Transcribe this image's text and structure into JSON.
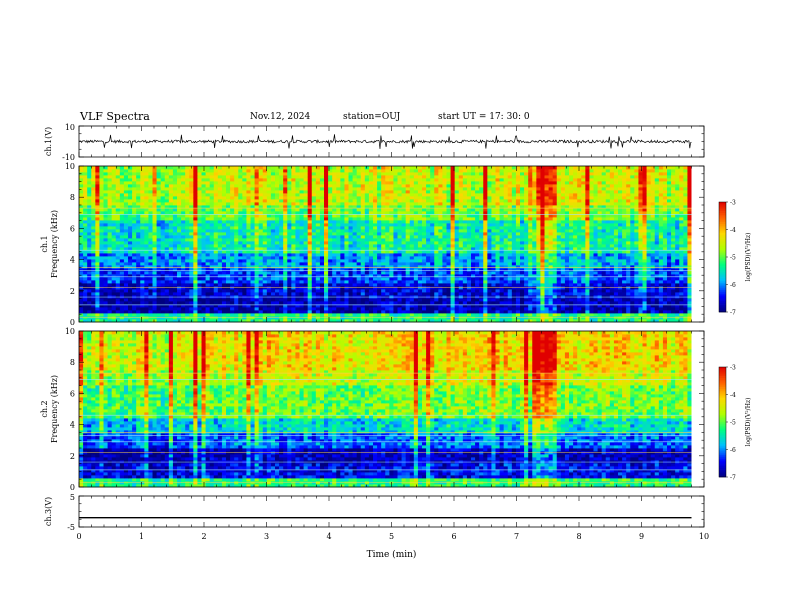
{
  "header": {
    "title": "VLF Spectra",
    "date": "Nov.12, 2024",
    "station": "station=OUJ",
    "start_ut": "start  UT =   17: 30: 0"
  },
  "chart_data": [
    {
      "type": "line",
      "name": "ch1-waveform",
      "ylabel": "ch.1(V)",
      "ytick_labels": [
        "10",
        "-10"
      ],
      "ylim": [
        -10,
        10
      ],
      "xlim": [
        0,
        10
      ],
      "baseline_v": 0,
      "noise_amplitude_v": 1.5,
      "data_span_min": [
        0,
        9.8
      ]
    },
    {
      "type": "heatmap",
      "name": "ch1-spectrogram",
      "ylabel_line1": "ch.1",
      "ylabel_line2": "Frequency (kHz)",
      "ytick_labels": [
        "0",
        "2",
        "4",
        "6",
        "8",
        "10"
      ],
      "ylim": [
        0,
        10
      ],
      "xlim": [
        0,
        10
      ],
      "data_span_min": [
        0,
        9.8
      ],
      "colorbar": {
        "label": "log(PSD)(V²/Hz)",
        "tick_labels": [
          "-3",
          "-4",
          "-5",
          "-6",
          "-7"
        ],
        "range": [
          -7,
          -3
        ]
      },
      "band_levels": [
        {
          "f_khz": [
            0,
            0.5
          ],
          "level": -5.3
        },
        {
          "f_khz": [
            0.5,
            1.5
          ],
          "level": -6.8
        },
        {
          "f_khz": [
            1.5,
            2.5
          ],
          "level": -6.6
        },
        {
          "f_khz": [
            2.5,
            3.5
          ],
          "level": -6.2
        },
        {
          "f_khz": [
            3.5,
            4.5
          ],
          "level": -5.9
        },
        {
          "f_khz": [
            4.5,
            6.5
          ],
          "level": -5.4
        },
        {
          "f_khz": [
            6.5,
            7.5
          ],
          "level": -4.9
        },
        {
          "f_khz": [
            7.5,
            10
          ],
          "level": -4.5
        }
      ]
    },
    {
      "type": "heatmap",
      "name": "ch2-spectrogram",
      "ylabel_line1": "ch.2",
      "ylabel_line2": "Frequency (kHz)",
      "ytick_labels": [
        "0",
        "2",
        "4",
        "6",
        "8",
        "10"
      ],
      "ylim": [
        0,
        10
      ],
      "xlim": [
        0,
        10
      ],
      "data_span_min": [
        0,
        9.8
      ],
      "colorbar": {
        "label": "log(PSD)(V²/Hz)",
        "tick_labels": [
          "-3",
          "-4",
          "-5",
          "-6",
          "-7"
        ],
        "range": [
          -7,
          -3
        ]
      },
      "band_levels": [
        {
          "f_khz": [
            0,
            0.5
          ],
          "level": -5.2
        },
        {
          "f_khz": [
            0.5,
            1.5
          ],
          "level": -6.5
        },
        {
          "f_khz": [
            1.5,
            2.5
          ],
          "level": -6.7
        },
        {
          "f_khz": [
            2.5,
            3.5
          ],
          "level": -6.1
        },
        {
          "f_khz": [
            3.5,
            4.5
          ],
          "level": -5.6
        },
        {
          "f_khz": [
            4.5,
            6.5
          ],
          "level": -4.9
        },
        {
          "f_khz": [
            6.5,
            7.5
          ],
          "level": -4.5
        },
        {
          "f_khz": [
            7.5,
            10
          ],
          "level": -4.2
        }
      ]
    },
    {
      "type": "line",
      "name": "ch3-waveform",
      "ylabel": "ch.3(V)",
      "ytick_labels": [
        "5",
        "-5"
      ],
      "ylim": [
        -5,
        5
      ],
      "xlim": [
        0,
        10
      ],
      "constant_value_v": -2,
      "data_span_min": [
        0,
        9.8
      ],
      "xlabel": "Time (min)",
      "xtick_labels": [
        "0",
        "1",
        "2",
        "3",
        "4",
        "5",
        "6",
        "7",
        "8",
        "9",
        "10"
      ]
    }
  ],
  "colors": {
    "colormap": [
      "#00007f",
      "#0000ff",
      "#00bfff",
      "#00ff80",
      "#b0ff00",
      "#ffd700",
      "#ff6000",
      "#e00000"
    ]
  }
}
